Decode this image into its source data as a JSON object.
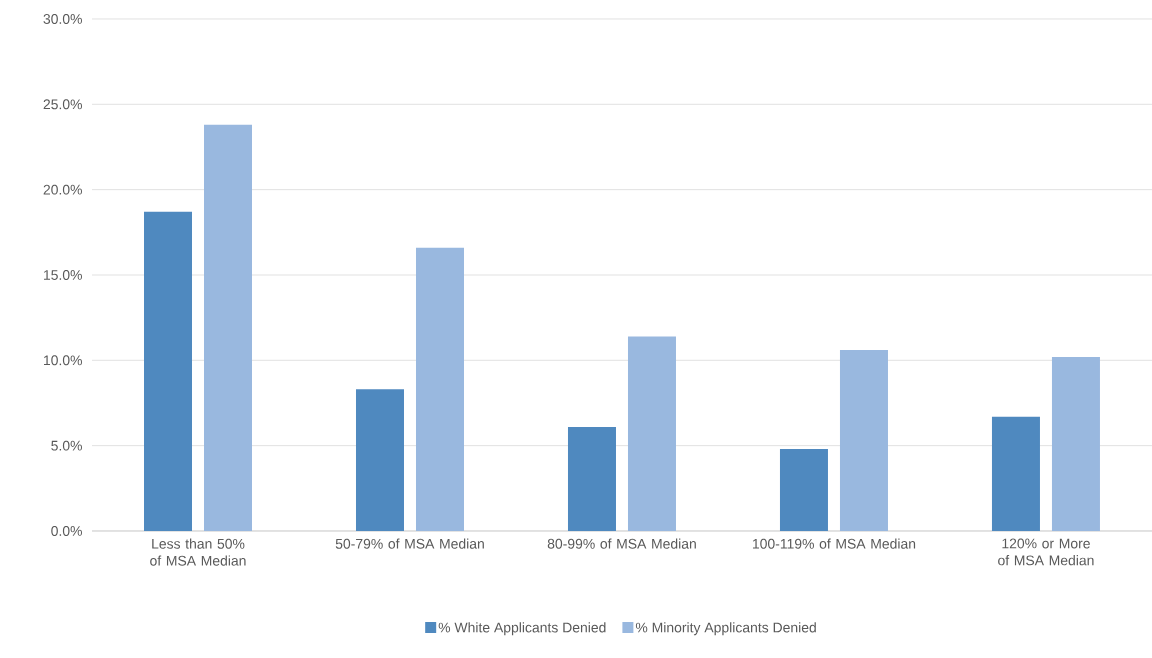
{
  "chart_data": {
    "type": "bar",
    "categories": [
      "Less than 50% of MSA Median",
      "50-79% of MSA Median",
      "80-99% of MSA Median",
      "100-119% of MSA Median",
      "120% or More of MSA Median"
    ],
    "series": [
      {
        "name": "% White Applicants Denied",
        "color": "#4f89bf",
        "values": [
          18.7,
          8.3,
          6.1,
          4.8,
          6.7
        ]
      },
      {
        "name": "% Minority Applicants Denied",
        "color": "#99b8df",
        "values": [
          23.8,
          16.6,
          11.4,
          10.6,
          10.2
        ]
      }
    ],
    "ylim": [
      0,
      30
    ],
    "yticks": [
      {
        "value": 0,
        "label": "0.0%"
      },
      {
        "value": 5,
        "label": "5.0%"
      },
      {
        "value": 10,
        "label": "10.0%"
      },
      {
        "value": 15,
        "label": "15.0%"
      },
      {
        "value": 20,
        "label": "20.0%"
      },
      {
        "value": 25,
        "label": "25.0%"
      },
      {
        "value": 30,
        "label": "30.0%"
      }
    ],
    "grid": "y",
    "legend": "bottom"
  }
}
